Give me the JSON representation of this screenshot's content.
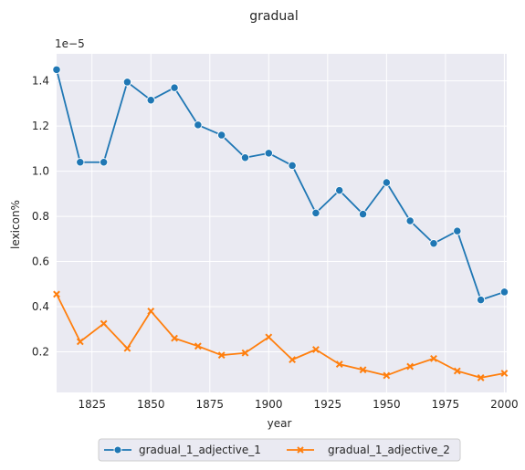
{
  "chart_data": {
    "type": "line",
    "title": "gradual",
    "xlabel": "year",
    "ylabel": "lexicon%",
    "y_offset_label": "1e−5",
    "xlim": [
      1810,
      2001
    ],
    "ylim": [
      0.02,
      1.52
    ],
    "y_scale_factor": "1e-5",
    "xticks": [
      "1825",
      "1850",
      "1875",
      "1900",
      "1925",
      "1950",
      "1975",
      "2000"
    ],
    "yticks": [
      "0.2",
      "0.4",
      "0.6",
      "0.8",
      "1.0",
      "1.2",
      "1.4"
    ],
    "grid": true,
    "legend_position": "bottom-center",
    "x": [
      1810,
      1820,
      1830,
      1840,
      1850,
      1860,
      1870,
      1880,
      1890,
      1900,
      1910,
      1920,
      1930,
      1940,
      1950,
      1960,
      1970,
      1980,
      1990,
      2000
    ],
    "series": [
      {
        "name": "gradual_1_adjective_1",
        "color": "#1f77b4",
        "marker": "circle",
        "values": [
          1.45,
          1.04,
          1.04,
          1.395,
          1.315,
          1.37,
          1.205,
          1.16,
          1.06,
          1.08,
          1.025,
          0.815,
          0.915,
          0.81,
          0.95,
          0.78,
          0.68,
          0.735,
          0.43,
          0.465
        ]
      },
      {
        "name": "gradual_1_adjective_2",
        "color": "#ff7f0e",
        "marker": "x",
        "values": [
          0.455,
          0.245,
          0.325,
          0.215,
          0.38,
          0.26,
          0.225,
          0.185,
          0.195,
          0.265,
          0.165,
          0.21,
          0.145,
          0.12,
          0.095,
          0.135,
          0.17,
          0.115,
          0.085,
          0.105
        ]
      }
    ]
  }
}
